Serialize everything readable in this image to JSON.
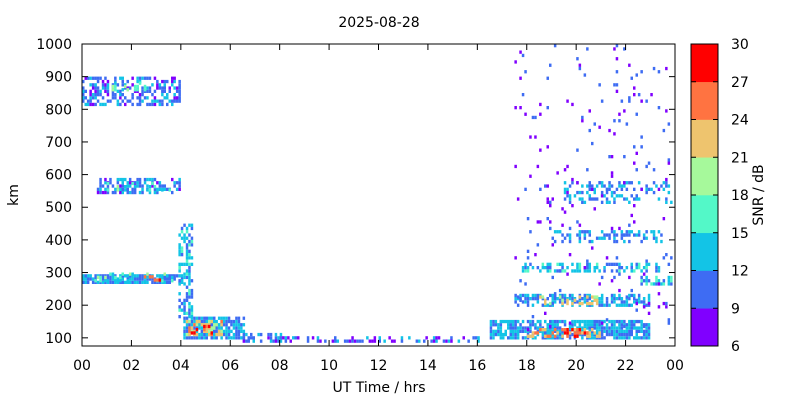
{
  "chart_data": {
    "type": "heatmap",
    "title": "2025-08-28",
    "xlabel": "UT Time / hrs",
    "ylabel": "km",
    "xlim": [
      0,
      24
    ],
    "ylim": [
      75,
      1000
    ],
    "x_ticks": [
      "00",
      "02",
      "04",
      "06",
      "08",
      "10",
      "12",
      "14",
      "16",
      "18",
      "20",
      "22",
      "00"
    ],
    "y_ticks": [
      "100",
      "200",
      "300",
      "400",
      "500",
      "600",
      "700",
      "800",
      "900",
      "1000"
    ],
    "colorbar": {
      "label": "SNR / dB",
      "min": 6,
      "max": 30,
      "ticks": [
        "6",
        "9",
        "12",
        "15",
        "18",
        "21",
        "24",
        "27",
        "30"
      ],
      "colors": [
        "#8000ff",
        "#3e6cf3",
        "#13c4e6",
        "#53f8c8",
        "#a6f99b",
        "#eec46e",
        "#ff7341",
        "#ff0000"
      ]
    },
    "layers": [
      {
        "t0": 0.0,
        "t1": 4.1,
        "h0": 265,
        "h1": 295,
        "snr": 12,
        "density": 0.85
      },
      {
        "t0": 0.5,
        "t1": 3.8,
        "h0": 270,
        "h1": 292,
        "snr": 16,
        "density": 0.35
      },
      {
        "t0": 2.5,
        "t1": 3.2,
        "h0": 272,
        "h1": 290,
        "snr": 27,
        "density": 0.25
      },
      {
        "t0": 0.6,
        "t1": 4.0,
        "h0": 540,
        "h1": 590,
        "snr": 11,
        "density": 0.55
      },
      {
        "t0": 1.0,
        "t1": 3.6,
        "h0": 548,
        "h1": 578,
        "snr": 16,
        "density": 0.25
      },
      {
        "t0": 0.0,
        "t1": 4.0,
        "h0": 810,
        "h1": 900,
        "snr": 11,
        "density": 0.5
      },
      {
        "t0": 1.2,
        "t1": 2.6,
        "h0": 855,
        "h1": 880,
        "snr": 16,
        "density": 0.3
      },
      {
        "t0": 3.9,
        "t1": 4.4,
        "h0": 160,
        "h1": 450,
        "snr": 13,
        "density": 0.5
      },
      {
        "t0": 4.1,
        "t1": 6.5,
        "h0": 95,
        "h1": 160,
        "snr": 12,
        "density": 0.85
      },
      {
        "t0": 4.2,
        "t1": 5.6,
        "h0": 105,
        "h1": 150,
        "snr": 22,
        "density": 0.45
      },
      {
        "t0": 4.3,
        "t1": 5.2,
        "h0": 110,
        "h1": 140,
        "snr": 28,
        "density": 0.3
      },
      {
        "t0": 6.5,
        "t1": 8.0,
        "h0": 85,
        "h1": 115,
        "snr": 11,
        "density": 0.6
      },
      {
        "t0": 8.0,
        "t1": 16.0,
        "h0": 85,
        "h1": 102,
        "snr": 10,
        "density": 0.4
      },
      {
        "t0": 16.5,
        "t1": 23.0,
        "h0": 95,
        "h1": 150,
        "snr": 12,
        "density": 0.8
      },
      {
        "t0": 18.0,
        "t1": 21.0,
        "h0": 100,
        "h1": 130,
        "snr": 24,
        "density": 0.45
      },
      {
        "t0": 19.5,
        "t1": 20.5,
        "h0": 100,
        "h1": 125,
        "snr": 29,
        "density": 0.45
      },
      {
        "t0": 17.5,
        "t1": 23.0,
        "h0": 195,
        "h1": 230,
        "snr": 12,
        "density": 0.6
      },
      {
        "t0": 18.5,
        "t1": 21.0,
        "h0": 200,
        "h1": 225,
        "snr": 21,
        "density": 0.35
      },
      {
        "t0": 17.8,
        "t1": 23.5,
        "h0": 300,
        "h1": 330,
        "snr": 13,
        "density": 0.4
      },
      {
        "t0": 19.0,
        "t1": 23.5,
        "h0": 390,
        "h1": 430,
        "snr": 12,
        "density": 0.35
      },
      {
        "t0": 19.5,
        "t1": 24.0,
        "h0": 510,
        "h1": 580,
        "snr": 12,
        "density": 0.3
      },
      {
        "t0": 22.5,
        "t1": 24.0,
        "h0": 260,
        "h1": 290,
        "snr": 14,
        "density": 0.6
      },
      {
        "t0": 17.5,
        "t1": 24.0,
        "h0": 120,
        "h1": 1000,
        "snr": 9,
        "density": 0.03
      }
    ]
  }
}
